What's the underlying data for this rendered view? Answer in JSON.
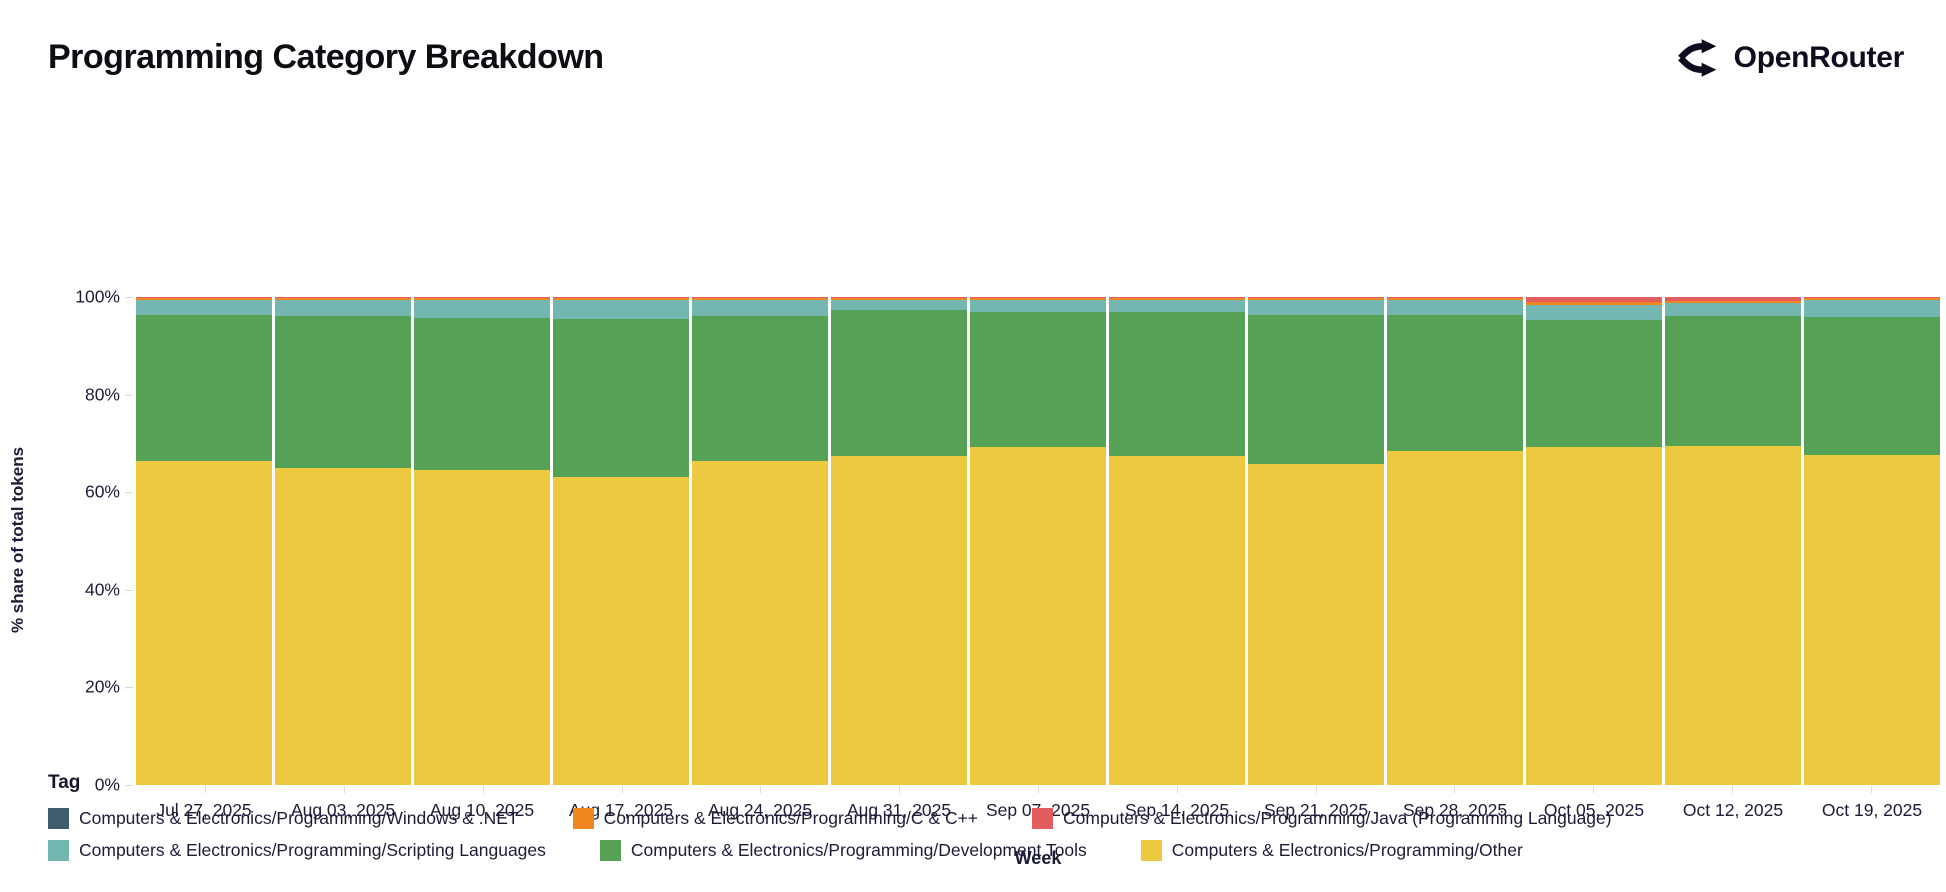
{
  "header": {
    "title": "Programming Category Breakdown",
    "brand": "OpenRouter"
  },
  "chart_data": {
    "type": "bar",
    "stacked": true,
    "normalized_percent": true,
    "title": "Programming Category Breakdown",
    "xlabel": "Week",
    "ylabel": "% share of total tokens",
    "ylim": [
      0,
      100
    ],
    "yticks": [
      {
        "label": "0%",
        "value": 0
      },
      {
        "label": "20%",
        "value": 20
      },
      {
        "label": "40%",
        "value": 40
      },
      {
        "label": "60%",
        "value": 60
      },
      {
        "label": "80%",
        "value": 80
      },
      {
        "label": "100%",
        "value": 100
      }
    ],
    "categories": [
      "Jul 27, 2025",
      "Aug 03, 2025",
      "Aug 10, 2025",
      "Aug 17, 2025",
      "Aug 24, 2025",
      "Aug 31, 2025",
      "Sep 07, 2025",
      "Sep 14, 2025",
      "Sep 21, 2025",
      "Sep 28, 2025",
      "Oct 05, 2025",
      "Oct 12, 2025",
      "Oct 19, 2025"
    ],
    "stack_order_bottom_to_top": [
      "other",
      "dev_tools",
      "scripting",
      "c_cpp",
      "java",
      "windows_net"
    ],
    "series": [
      {
        "key": "windows_net",
        "name": "Computers & Electronics/Programming/Windows & .NET",
        "color": "#3e5c6e",
        "pattern": "dots",
        "values": [
          0.1,
          0.1,
          0.1,
          0.1,
          0.1,
          0.1,
          0.1,
          0.1,
          0.1,
          0.1,
          0.1,
          0.1,
          0.1
        ]
      },
      {
        "key": "c_cpp",
        "name": "Computers & Electronics/Programming/C & C++",
        "color": "#f0861f",
        "pattern": "solid",
        "values": [
          0.5,
          0.5,
          0.5,
          0.5,
          0.5,
          0.5,
          0.5,
          0.5,
          0.5,
          0.5,
          0.5,
          0.5,
          0.5
        ]
      },
      {
        "key": "java",
        "name": "Computers & Electronics/Programming/Java (Programming Language)",
        "color": "#e25d5d",
        "pattern": "solid",
        "values": [
          0.1,
          0.1,
          0.1,
          0.1,
          0.1,
          0.1,
          0.1,
          0.1,
          0.1,
          0.1,
          1.0,
          0.7,
          0.1
        ]
      },
      {
        "key": "scripting",
        "name": "Computers & Electronics/Programming/Scripting Languages",
        "color": "#74b6b0",
        "pattern": "solid",
        "values": [
          2.9,
          3.2,
          3.6,
          3.8,
          3.2,
          1.9,
          2.4,
          2.4,
          3.0,
          3.0,
          3.1,
          2.6,
          3.4
        ]
      },
      {
        "key": "dev_tools",
        "name": "Computers & Electronics/Programming/Development Tools",
        "color": "#55a155",
        "pattern": "solid",
        "values": [
          30.1,
          31.1,
          31.1,
          32.3,
          29.8,
          29.9,
          27.7,
          29.5,
          30.5,
          27.9,
          26.0,
          26.7,
          28.2
        ]
      },
      {
        "key": "other",
        "name": "Computers & Electronics/Programming/Other",
        "color": "#edc93f",
        "pattern": "solid",
        "values": [
          66.3,
          65.0,
          64.6,
          63.2,
          66.3,
          67.5,
          69.2,
          67.4,
          65.8,
          68.4,
          69.3,
          69.4,
          67.7
        ]
      }
    ],
    "legend_position": "bottom"
  },
  "legend": {
    "title": "Tag",
    "rows": [
      [
        "windows_net",
        "c_cpp",
        "java"
      ],
      [
        "scripting",
        "dev_tools",
        "other"
      ]
    ]
  }
}
